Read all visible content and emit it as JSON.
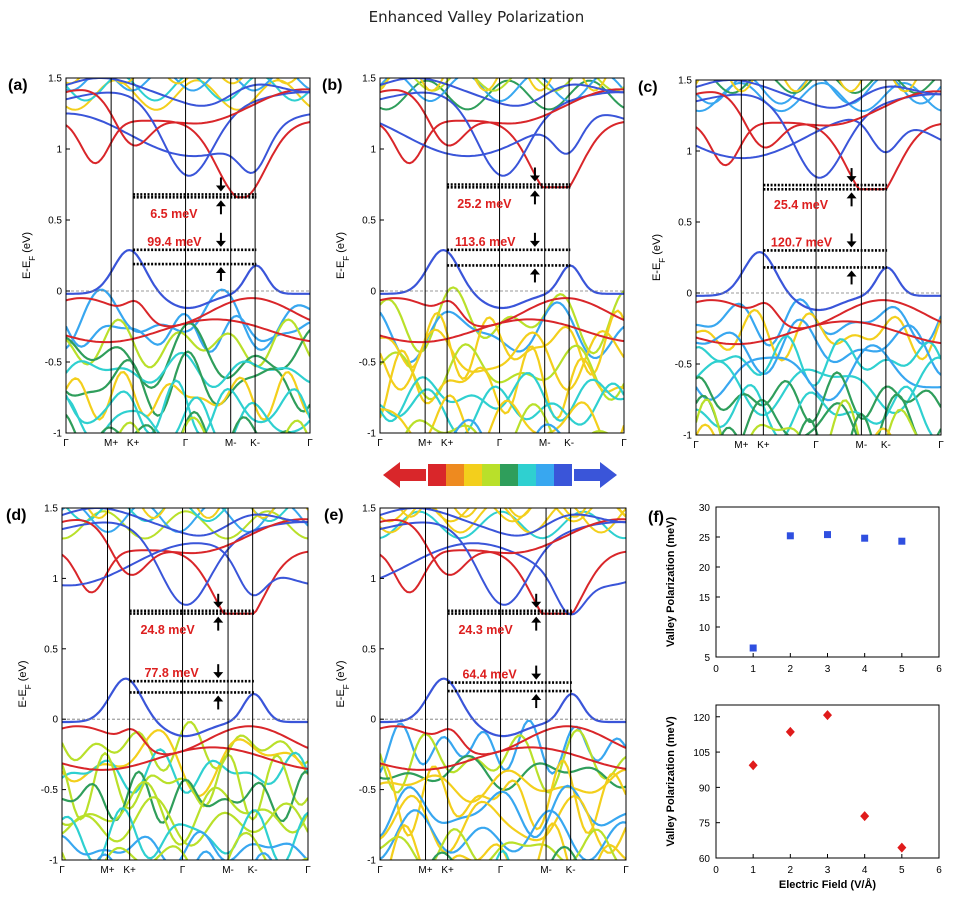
{
  "title": "Enhanced Valley Polarization",
  "panels": [
    {
      "label": "(a)",
      "vp_cb": "6.5 meV",
      "vp_vb": "99.4 meV",
      "cb": [
        0.68,
        0.66
      ],
      "vb": [
        0.29,
        0.19
      ]
    },
    {
      "label": "(b)",
      "vp_cb": "25.2 meV",
      "vp_vb": "113.6 meV",
      "cb": [
        0.75,
        0.73
      ],
      "vb": [
        0.29,
        0.18
      ]
    },
    {
      "label": "(c)",
      "vp_cb": "25.4 meV",
      "vp_vb": "120.7 meV",
      "cb": [
        0.76,
        0.73
      ],
      "vb": [
        0.3,
        0.18
      ]
    },
    {
      "label": "(d)",
      "vp_cb": "24.8 meV",
      "vp_vb": "77.8 meV",
      "cb": [
        0.77,
        0.75
      ],
      "vb": [
        0.27,
        0.19
      ]
    },
    {
      "label": "(e)",
      "vp_cb": "24.3 meV",
      "vp_vb": "64.4 meV",
      "cb": [
        0.77,
        0.75
      ],
      "vb": [
        0.26,
        0.2
      ]
    }
  ],
  "band_axis": {
    "ylabel": "E-E_F (eV)",
    "ylim": [
      -1,
      1.5
    ],
    "yticks": [
      "-1",
      "-0.5",
      "0",
      "0.5",
      "1",
      "1.5"
    ],
    "kpoints": [
      "Γ",
      "M+",
      "K+",
      "Γ",
      "M-",
      "K-",
      "Γ"
    ]
  },
  "f_label": "(f)",
  "chart_data": [
    {
      "type": "scatter",
      "title": "",
      "xlabel": "",
      "ylabel": "Valley Polarization (meV)",
      "xlim": [
        0,
        6
      ],
      "ylim": [
        5,
        30
      ],
      "xticks": [
        0,
        1,
        2,
        3,
        4,
        5,
        6
      ],
      "yticks": [
        5,
        10,
        15,
        20,
        25,
        30
      ],
      "marker": "square",
      "color": "#2f4fe0",
      "x": [
        1,
        2,
        3,
        4,
        5
      ],
      "y": [
        6.5,
        25.2,
        25.4,
        24.8,
        24.3
      ]
    },
    {
      "type": "scatter",
      "title": "",
      "xlabel": "Electric Field (V/Å)",
      "ylabel": "Valley Polarization (meV)",
      "xlim": [
        0,
        6
      ],
      "ylim": [
        60,
        125
      ],
      "xticks": [
        0,
        1,
        2,
        3,
        4,
        5,
        6
      ],
      "yticks": [
        60,
        75,
        90,
        105,
        120
      ],
      "marker": "diamond",
      "color": "#e01b1b",
      "x": [
        1,
        2,
        3,
        4,
        5
      ],
      "y": [
        99.4,
        113.6,
        120.7,
        77.8,
        64.4
      ]
    }
  ],
  "colors": {
    "spin_up": "#d9262a",
    "spin_down": "#3a55d9",
    "scale": [
      "#d9262a",
      "#ee8a1f",
      "#f3cf1c",
      "#b9e02a",
      "#2f9e5b",
      "#2fd0d0",
      "#38a7f0",
      "#3a55d9"
    ]
  }
}
